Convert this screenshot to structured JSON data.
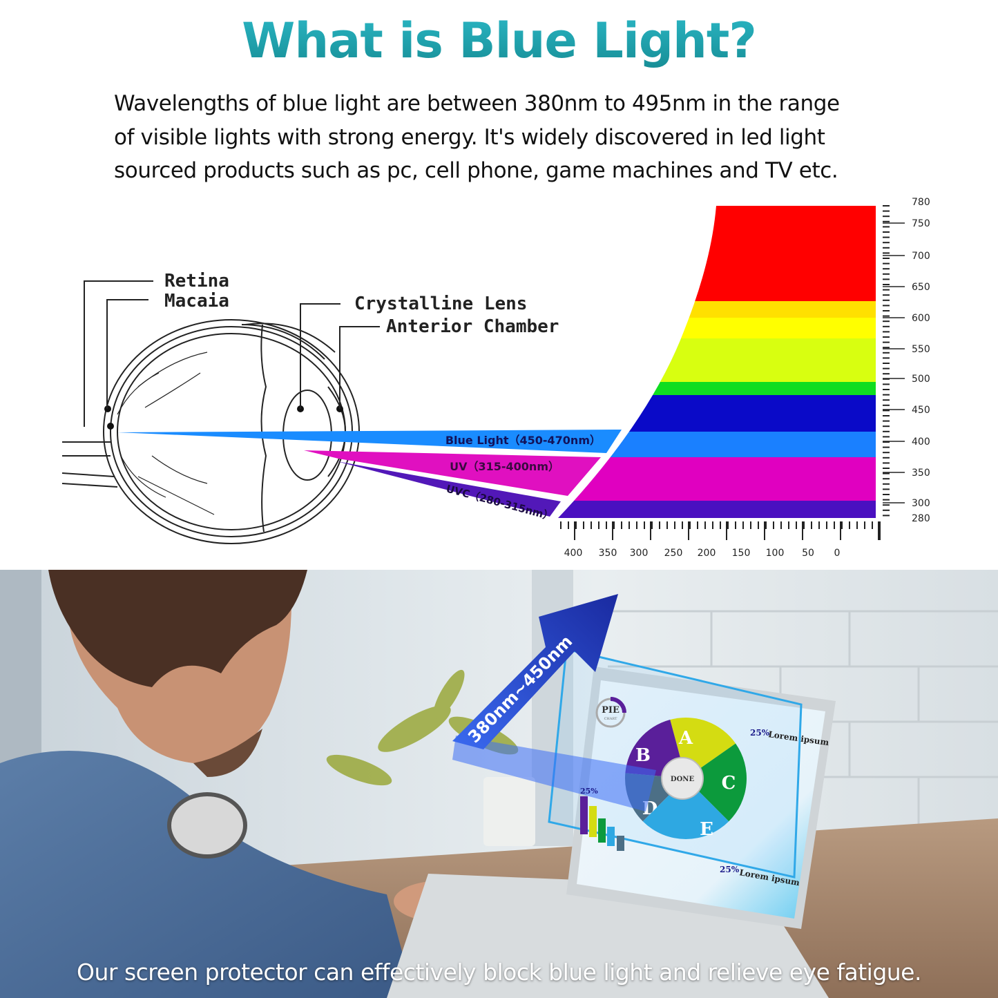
{
  "title": "What is Blue Light?",
  "description": [
    "Wavelengths of blue light are between 380nm to 495nm in the range",
    "of visible lights with strong energy. It's widely discovered in led light",
    "sourced products such as pc, cell phone, game machines and TV etc."
  ],
  "eye_labels": {
    "retina": "Retina",
    "macula": "Macaia",
    "lens": "Crystalline Lens",
    "chamber": "Anterior Chamber"
  },
  "beams": {
    "blue": "Blue Light（450-470nm）",
    "uv": "UV（315-400nm）",
    "uvc": "UVC（280-315nm）"
  },
  "spectrum": {
    "right_axis": [
      "780",
      "750",
      "700",
      "650",
      "600",
      "550",
      "500",
      "450",
      "400",
      "350",
      "300",
      "280"
    ],
    "bottom_axis": [
      "400",
      "350",
      "300",
      "250",
      "200",
      "150",
      "100",
      "50",
      "0"
    ],
    "band_colors": [
      "#ff0000",
      "#ffe000",
      "#ffff00",
      "#d8ff10",
      "#10dd20",
      "#0a0ac8",
      "#1a80ff",
      "#e000c0",
      "#4a10c0"
    ]
  },
  "photo": {
    "arrow_label": "380nm~450nm",
    "screen": {
      "logo_main": "PIE",
      "logo_sub": "CHART",
      "center_button": "DONE",
      "slices": [
        "A",
        "B",
        "C",
        "D",
        "E"
      ],
      "slice_colors": [
        "#d4dc12",
        "#5a1f9a",
        "#0c9a3c",
        "#4c6f86",
        "#2ea8e2"
      ],
      "callout_1_pct": "25%",
      "callout_1_title": "Lorem ipsum",
      "callout_2_pct": "25%",
      "callout_2_title": "Lorem ipsum",
      "bar_pct": "25%"
    }
  },
  "caption": "Our screen protector can effectively block blue light and relieve eye fatigue."
}
